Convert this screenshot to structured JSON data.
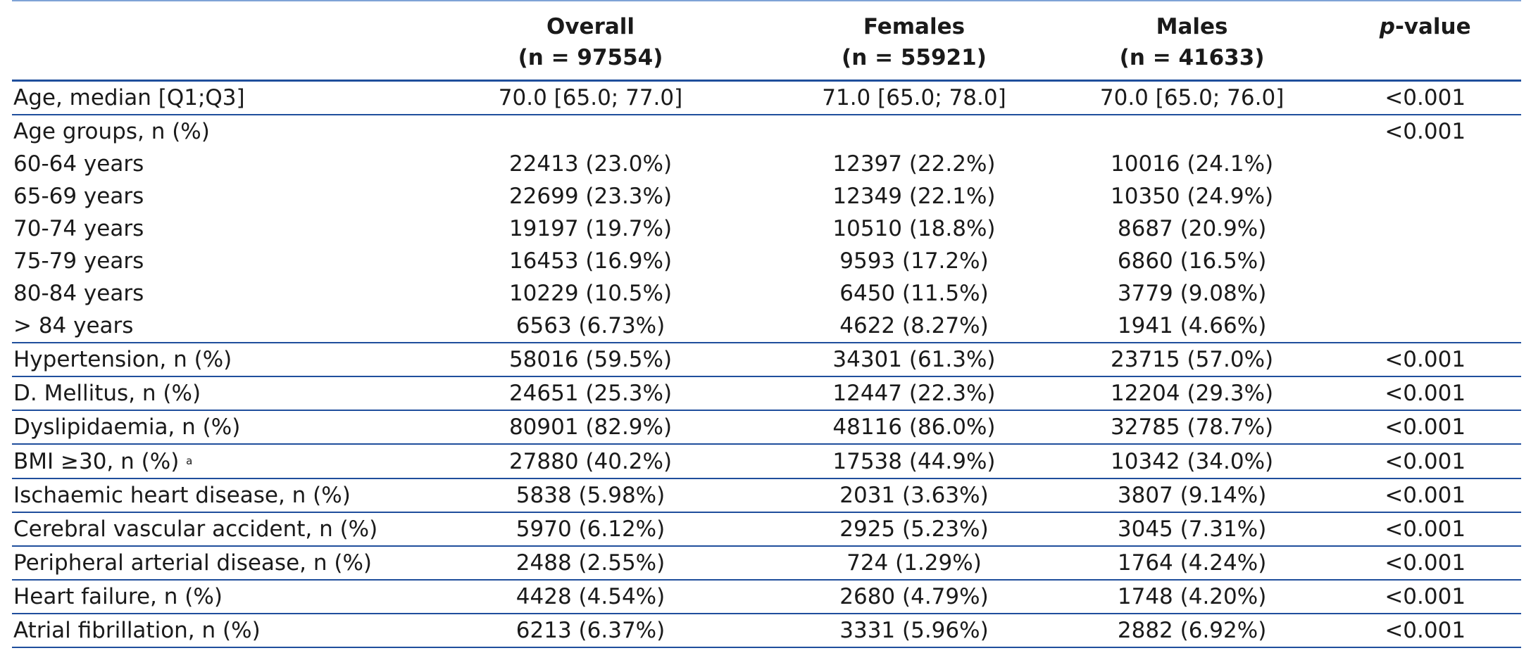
{
  "header": {
    "columns": [
      {
        "title": "",
        "sub": ""
      },
      {
        "title": "Overall",
        "sub": "(n = 97554)"
      },
      {
        "title": "Females",
        "sub": "(n = 55921)"
      },
      {
        "title": "Males",
        "sub": "(n = 41633)"
      },
      {
        "title_italic": "p",
        "title": "-value",
        "sub": ""
      }
    ]
  },
  "rows": [
    {
      "label": "Age, median [Q1;Q3]",
      "overall": "70.0 [65.0; 77.0]",
      "females": "71.0 [65.0; 78.0]",
      "males": "70.0 [65.0; 76.0]",
      "p": "<0.001"
    },
    {
      "label": "Age groups, n (%)",
      "overall": "",
      "females": "",
      "males": "",
      "p": "<0.001"
    },
    {
      "label": "60-64 years",
      "overall": "22413 (23.0%)",
      "females": "12397 (22.2%)",
      "males": "10016 (24.1%)",
      "p": ""
    },
    {
      "label": "65-69 years",
      "overall": "22699 (23.3%)",
      "females": "12349 (22.1%)",
      "males": "10350 (24.9%)",
      "p": ""
    },
    {
      "label": "70-74 years",
      "overall": "19197 (19.7%)",
      "females": "10510 (18.8%)",
      "males": "8687 (20.9%)",
      "p": ""
    },
    {
      "label": "75-79 years",
      "overall": "16453 (16.9%)",
      "females": "9593 (17.2%)",
      "males": "6860 (16.5%)",
      "p": ""
    },
    {
      "label": "80-84 years",
      "overall": "10229 (10.5%)",
      "females": "6450 (11.5%)",
      "males": "3779 (9.08%)",
      "p": ""
    },
    {
      "label": "> 84 years",
      "overall": "6563 (6.73%)",
      "females": "4622 (8.27%)",
      "males": "1941 (4.66%)",
      "p": ""
    },
    {
      "label": "Hypertension, n (%)",
      "overall": "58016 (59.5%)",
      "females": "34301 (61.3%)",
      "males": "23715 (57.0%)",
      "p": "<0.001"
    },
    {
      "label": "D. Mellitus, n (%)",
      "overall": "24651 (25.3%)",
      "females": "12447 (22.3%)",
      "males": "12204 (29.3%)",
      "p": "<0.001"
    },
    {
      "label": "Dyslipidaemia, n (%)",
      "overall": "80901 (82.9%)",
      "females": "48116 (86.0%)",
      "males": "32785 (78.7%)",
      "p": "<0.001"
    },
    {
      "label": "BMI ≥30, n (%)",
      "sup": "a",
      "overall": "27880 (40.2%)",
      "females": "17538 (44.9%)",
      "males": "10342 (34.0%)",
      "p": "<0.001"
    },
    {
      "label": "Ischaemic heart disease, n (%)",
      "overall": "5838 (5.98%)",
      "females": "2031 (3.63%)",
      "males": "3807 (9.14%)",
      "p": "<0.001"
    },
    {
      "label": "Cerebral vascular accident, n (%)",
      "overall": "5970 (6.12%)",
      "females": "2925 (5.23%)",
      "males": "3045 (7.31%)",
      "p": "<0.001"
    },
    {
      "label": "Peripheral arterial disease, n (%)",
      "overall": "2488 (2.55%)",
      "females": "724 (1.29%)",
      "males": "1764 (4.24%)",
      "p": "<0.001"
    },
    {
      "label": "Heart failure, n (%)",
      "overall": "4428 (4.54%)",
      "females": "2680 (4.79%)",
      "males": "1748 (4.20%)",
      "p": "<0.001"
    },
    {
      "label": "Atrial fibrillation, n (%)",
      "overall": "6213 (6.37%)",
      "females": "3331 (5.96%)",
      "males": "2882 (6.92%)",
      "p": "<0.001"
    }
  ],
  "colors": {
    "rule": "#1f4e9c",
    "top_rule": "#7fa3d6"
  }
}
